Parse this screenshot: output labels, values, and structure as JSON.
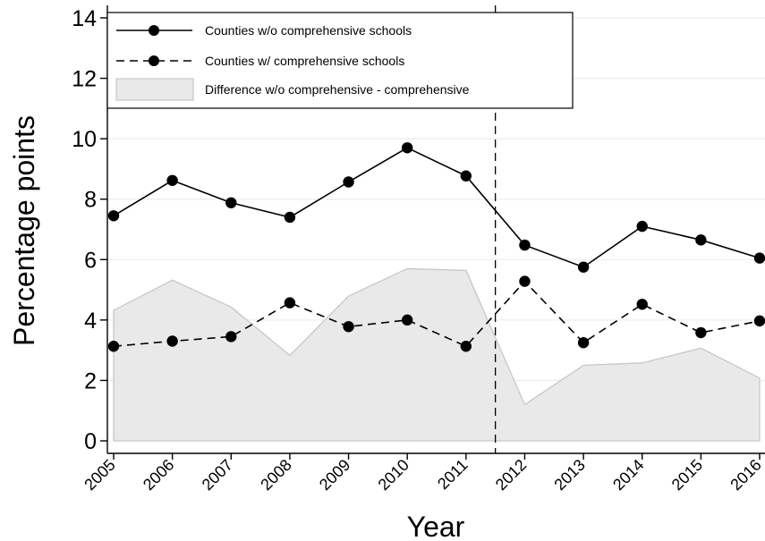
{
  "chart_data": {
    "type": "line",
    "xlabel": "Year",
    "ylabel": "Percentage points",
    "x": [
      2005,
      2006,
      2007,
      2008,
      2009,
      2010,
      2011,
      2012,
      2013,
      2014,
      2015,
      2016
    ],
    "xlim": [
      2005,
      2016
    ],
    "ylim": [
      0,
      14
    ],
    "yticks": [
      0,
      2,
      4,
      6,
      8,
      10,
      12,
      14
    ],
    "grid": true,
    "legend_position": "top-left",
    "vline_x": 2011.5,
    "series": [
      {
        "name": "Counties w/o comprehensive schools",
        "style": "solid",
        "values": [
          7.45,
          8.62,
          7.88,
          7.4,
          8.57,
          9.7,
          8.77,
          6.48,
          5.75,
          7.1,
          6.65,
          6.05
        ]
      },
      {
        "name": "Counties w/ comprehensive schools",
        "style": "dashed",
        "values": [
          3.13,
          3.3,
          3.45,
          4.57,
          3.78,
          4.0,
          3.13,
          5.28,
          3.25,
          4.52,
          3.58,
          3.97
        ]
      },
      {
        "name": "Difference w/o comprehensive - comprehensive",
        "style": "area",
        "values": [
          4.32,
          5.32,
          4.43,
          2.83,
          4.79,
          5.7,
          5.64,
          1.2,
          2.5,
          2.58,
          3.07,
          2.08
        ]
      }
    ],
    "colors": {
      "line": "#000000",
      "area_fill": "#e9e9e9",
      "area_edge": "#c8c8c8",
      "grid": "#eeeeee"
    }
  }
}
